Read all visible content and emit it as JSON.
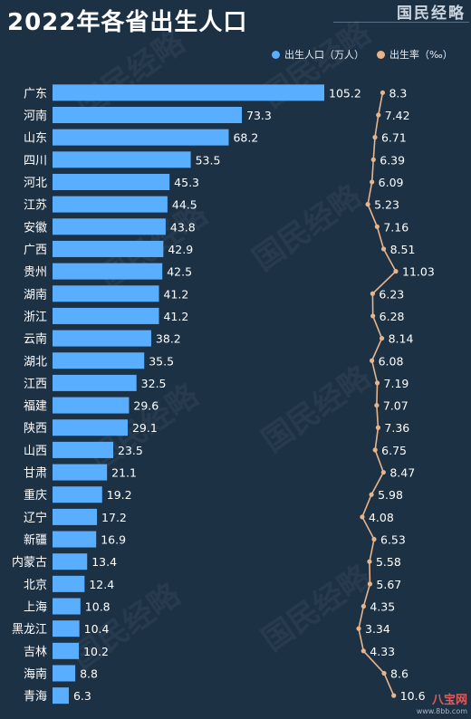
{
  "header": {
    "title": "2022年各省出生人口",
    "brand": "国民经略"
  },
  "legend": {
    "births_label": "出生人口（万人）",
    "rate_label": "出生率（‰）"
  },
  "colors": {
    "bar": "#5aaeff",
    "line": "#e8b48c",
    "background": "#1d3145"
  },
  "site_logo": {
    "name": "八宝网",
    "url": "www.8bb.com"
  },
  "chart_data": {
    "type": "bar",
    "categories": [
      "广东",
      "河南",
      "山东",
      "四川",
      "河北",
      "江苏",
      "安徽",
      "广西",
      "贵州",
      "湖南",
      "浙江",
      "云南",
      "湖北",
      "江西",
      "福建",
      "陕西",
      "山西",
      "甘肃",
      "重庆",
      "辽宁",
      "新疆",
      "内蒙古",
      "北京",
      "上海",
      "黑龙江",
      "吉林",
      "海南",
      "青海"
    ],
    "series": [
      {
        "name": "出生人口（万人）",
        "type": "bar",
        "values": [
          105.2,
          73.3,
          68.2,
          53.5,
          45.3,
          44.5,
          43.8,
          42.9,
          42.5,
          41.2,
          41.2,
          38.2,
          35.5,
          32.5,
          29.6,
          29.1,
          23.5,
          21.1,
          19.2,
          17.2,
          16.9,
          13.4,
          12.4,
          10.8,
          10.4,
          10.2,
          8.8,
          6.3
        ]
      },
      {
        "name": "出生率（‰）",
        "type": "line",
        "values": [
          8.3,
          7.42,
          6.71,
          6.39,
          6.09,
          5.23,
          7.16,
          8.51,
          11.03,
          6.23,
          6.28,
          8.14,
          6.08,
          7.19,
          7.07,
          7.36,
          6.75,
          8.47,
          5.98,
          4.08,
          6.53,
          5.58,
          5.67,
          4.35,
          3.34,
          4.33,
          8.6,
          10.6
        ]
      }
    ],
    "orientation": "horizontal",
    "xlim": [
      0,
      105.2
    ],
    "rate_range": [
      3.34,
      11.03
    ],
    "grid": false,
    "legend_position": "top-right"
  }
}
